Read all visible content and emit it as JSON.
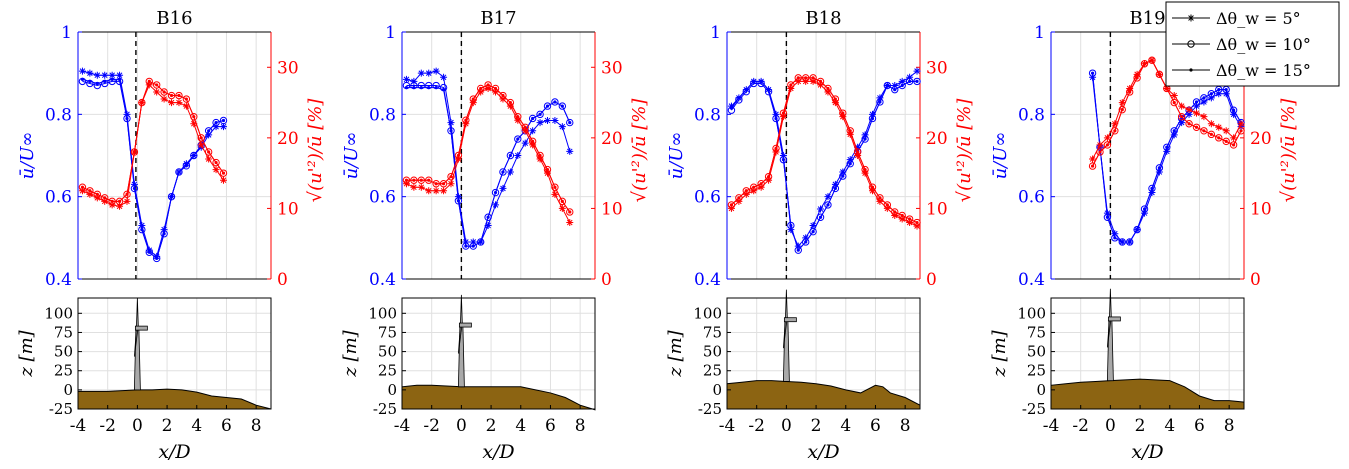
{
  "figure": {
    "legend": [
      {
        "label": "Δθ_w = 5°",
        "marker": "star"
      },
      {
        "label": "Δθ_w = 10°",
        "marker": "circle"
      },
      {
        "label": "Δθ_w = 15°",
        "marker": "dot"
      }
    ],
    "colors": {
      "velocity": "#0000ff",
      "turbulence": "#ff0000",
      "terrain": "#8c6412",
      "turbine": "#a9a9a9",
      "grid": "#e0e0e0"
    },
    "left_axis_label": "ū/U∞",
    "right_axis_label": "√(u'²)/ū [%]",
    "x_axis_label": "x/D",
    "z_axis_label": "z [m]"
  },
  "chart_data": [
    {
      "type": "line",
      "title": "B16",
      "xlim": [
        -4,
        9
      ],
      "ylim_left": [
        0.4,
        1
      ],
      "ylim_right": [
        0,
        35
      ],
      "x_ticks": [
        "-4",
        "-2",
        "0",
        "2",
        "4",
        "6",
        "8"
      ],
      "left_ticks": [
        "0.4",
        "0.6",
        "0.8",
        "1"
      ],
      "right_ticks": [
        "0",
        "10",
        "20",
        "30"
      ],
      "dashed_line_x": -0.1,
      "x": [
        -3.7,
        -3.2,
        -2.7,
        -2.2,
        -1.7,
        -1.2,
        -0.7,
        -0.2,
        0.3,
        0.8,
        1.3,
        1.8,
        2.3,
        2.8,
        3.3,
        3.8,
        4.3,
        4.8,
        5.3,
        5.8
      ],
      "velocity_series": [
        {
          "name": "Δθ_w = 5°",
          "values": [
            0.905,
            0.9,
            0.895,
            0.895,
            0.895,
            0.895,
            0.8,
            0.63,
            0.53,
            0.47,
            0.455,
            0.52,
            0.6,
            0.66,
            0.68,
            0.7,
            0.72,
            0.75,
            0.77,
            0.77
          ]
        },
        {
          "name": "Δθ_w = 10°",
          "values": [
            0.88,
            0.875,
            0.87,
            0.875,
            0.88,
            0.88,
            0.79,
            0.62,
            0.52,
            0.465,
            0.45,
            0.51,
            0.6,
            0.66,
            0.675,
            0.7,
            0.725,
            0.76,
            0.78,
            0.785
          ]
        },
        {
          "name": "Δθ_w = 15°",
          "values": [
            0.885,
            0.88,
            0.875,
            0.88,
            0.885,
            0.885,
            0.79,
            0.62,
            0.52,
            0.465,
            0.45,
            0.51,
            0.6,
            0.66,
            0.675,
            0.7,
            0.725,
            0.76,
            0.78,
            0.785
          ]
        }
      ],
      "turbulence_series": [
        {
          "name": "Δθ_w = 5°",
          "values": [
            12.5,
            12,
            11.5,
            11,
            10.5,
            10.3,
            11,
            18,
            25,
            27.5,
            26.5,
            25.5,
            25,
            25,
            24.5,
            22,
            19,
            17,
            15.5,
            14
          ]
        },
        {
          "name": "Δθ_w = 10°",
          "values": [
            13,
            12.5,
            12,
            11.5,
            11,
            11,
            12,
            18,
            25,
            28,
            27.5,
            26.5,
            26,
            26,
            25.5,
            23,
            20,
            18,
            16.5,
            15
          ]
        },
        {
          "name": "Δθ_w = 15°",
          "values": [
            13,
            12.5,
            12,
            11.5,
            11,
            11,
            12,
            18,
            25,
            28,
            27.5,
            26.5,
            26,
            26,
            25.5,
            23,
            20,
            18,
            16.5,
            15
          ]
        }
      ],
      "terrain": {
        "x": [
          -4,
          -3,
          -2,
          -1,
          0,
          1,
          2,
          3,
          4,
          5,
          6,
          7,
          8,
          9
        ],
        "z": [
          -2,
          -2,
          -2,
          -1,
          0,
          0,
          1,
          0,
          -3,
          -8,
          -10,
          -12,
          -20,
          -25
        ]
      },
      "turbine_hub_m": 80,
      "turbine_tip_m": 120
    },
    {
      "type": "line",
      "title": "B17",
      "xlim": [
        -4,
        9
      ],
      "ylim_left": [
        0.4,
        1
      ],
      "ylim_right": [
        0,
        35
      ],
      "x_ticks": [
        "-4",
        "-2",
        "0",
        "2",
        "4",
        "6",
        "8"
      ],
      "left_ticks": [
        "0.4",
        "0.6",
        "0.8",
        "1"
      ],
      "right_ticks": [
        "0",
        "10",
        "20",
        "30"
      ],
      "dashed_line_x": 0,
      "x": [
        -3.7,
        -3.2,
        -2.7,
        -2.2,
        -1.7,
        -1.2,
        -0.7,
        -0.2,
        0.3,
        0.8,
        1.3,
        1.8,
        2.3,
        2.8,
        3.3,
        3.8,
        4.3,
        4.8,
        5.3,
        5.8,
        6.3,
        6.8,
        7.3
      ],
      "velocity_series": [
        {
          "name": "Δθ_w = 5°",
          "values": [
            0.885,
            0.88,
            0.9,
            0.9,
            0.905,
            0.89,
            0.78,
            0.6,
            0.49,
            0.49,
            0.49,
            0.53,
            0.58,
            0.62,
            0.66,
            0.7,
            0.73,
            0.76,
            0.78,
            0.785,
            0.785,
            0.77,
            0.71
          ]
        },
        {
          "name": "Δθ_w = 10°",
          "values": [
            0.87,
            0.87,
            0.87,
            0.87,
            0.87,
            0.865,
            0.76,
            0.59,
            0.48,
            0.48,
            0.49,
            0.55,
            0.61,
            0.66,
            0.7,
            0.74,
            0.76,
            0.79,
            0.8,
            0.82,
            0.83,
            0.82,
            0.78
          ]
        },
        {
          "name": "Δθ_w = 15°",
          "values": [
            0.865,
            0.865,
            0.865,
            0.865,
            0.865,
            0.86,
            0.76,
            0.59,
            0.48,
            0.48,
            0.49,
            0.55,
            0.61,
            0.66,
            0.7,
            0.74,
            0.76,
            0.79,
            0.8,
            0.82,
            0.83,
            0.82,
            0.78
          ]
        }
      ],
      "turbulence_series": [
        {
          "name": "Δθ_w = 5°",
          "values": [
            13.5,
            13,
            13,
            12.5,
            12.5,
            12.5,
            13.5,
            17,
            22,
            25,
            26.5,
            27,
            26.5,
            25.5,
            24.5,
            22.5,
            21,
            19,
            17,
            15,
            12,
            10,
            8
          ]
        },
        {
          "name": "Δθ_w = 10°",
          "values": [
            14,
            14,
            14,
            14,
            13.5,
            13.5,
            14.5,
            17.5,
            22.5,
            25.5,
            27,
            27.5,
            27,
            26,
            25,
            23,
            21.5,
            19.5,
            17.5,
            15.5,
            13,
            11,
            9.5
          ]
        },
        {
          "name": "Δθ_w = 15°",
          "values": [
            14,
            14,
            14,
            14,
            13.5,
            13.5,
            14.5,
            17.5,
            22.5,
            25.5,
            27,
            27.5,
            27,
            26,
            25,
            23,
            21.5,
            19.5,
            17.5,
            15.5,
            13,
            11,
            9.5
          ]
        }
      ],
      "terrain": {
        "x": [
          -4,
          -3,
          -2,
          -1,
          0,
          1,
          2,
          3,
          4,
          5,
          6,
          7,
          8,
          9
        ],
        "z": [
          4,
          6,
          6,
          5,
          4,
          4,
          4,
          4,
          4,
          0,
          -4,
          -10,
          -20,
          -26
        ]
      },
      "turbine_hub_m": 80,
      "turbine_tip_m": 120
    },
    {
      "type": "line",
      "title": "B18",
      "xlim": [
        -4,
        9
      ],
      "ylim_left": [
        0.4,
        1
      ],
      "ylim_right": [
        0,
        35
      ],
      "x_ticks": [
        "-4",
        "-2",
        "0",
        "2",
        "4",
        "6",
        "8"
      ],
      "left_ticks": [
        "0.4",
        "0.6",
        "0.8",
        "1"
      ],
      "right_ticks": [
        "0",
        "10",
        "20",
        "30"
      ],
      "dashed_line_x": 0,
      "x": [
        -3.7,
        -3.2,
        -2.7,
        -2.2,
        -1.7,
        -1.2,
        -0.7,
        -0.2,
        0.3,
        0.8,
        1.3,
        1.8,
        2.3,
        2.8,
        3.3,
        3.8,
        4.3,
        4.8,
        5.3,
        5.8,
        6.3,
        6.8,
        7.3,
        7.8,
        8.3,
        8.8
      ],
      "velocity_series": [
        {
          "name": "Δθ_w = 5°",
          "values": [
            0.82,
            0.84,
            0.86,
            0.88,
            0.88,
            0.86,
            0.8,
            0.7,
            0.52,
            0.48,
            0.5,
            0.53,
            0.57,
            0.6,
            0.63,
            0.66,
            0.69,
            0.72,
            0.75,
            0.8,
            0.84,
            0.87,
            0.87,
            0.88,
            0.89,
            0.905
          ]
        },
        {
          "name": "Δθ_w = 10°",
          "values": [
            0.81,
            0.835,
            0.855,
            0.875,
            0.875,
            0.855,
            0.79,
            0.69,
            0.53,
            0.47,
            0.49,
            0.515,
            0.55,
            0.58,
            0.62,
            0.65,
            0.68,
            0.71,
            0.74,
            0.79,
            0.83,
            0.87,
            0.86,
            0.87,
            0.88,
            0.88
          ]
        },
        {
          "name": "Δθ_w = 15°",
          "values": [
            0.815,
            0.84,
            0.86,
            0.88,
            0.88,
            0.86,
            0.79,
            0.69,
            0.53,
            0.47,
            0.49,
            0.515,
            0.55,
            0.58,
            0.62,
            0.65,
            0.68,
            0.71,
            0.74,
            0.79,
            0.83,
            0.87,
            0.86,
            0.87,
            0.88,
            0.88
          ]
        }
      ],
      "turbulence_series": [
        {
          "name": "Δθ_w = 5°",
          "values": [
            10,
            11,
            12,
            12.5,
            13,
            14,
            18,
            23,
            27,
            28,
            28,
            28,
            27.5,
            26.5,
            25,
            23,
            20.5,
            17.5,
            15,
            12.5,
            11,
            10,
            9,
            8.5,
            8,
            7.5
          ]
        },
        {
          "name": "Δθ_w = 10°",
          "values": [
            10.5,
            11.5,
            12.5,
            13,
            13.5,
            14.5,
            18.5,
            23.5,
            27.5,
            28.5,
            28.5,
            28.5,
            28,
            27,
            25.5,
            23.5,
            21,
            18,
            15.5,
            13,
            11.5,
            10.5,
            9.5,
            9,
            8.5,
            8
          ]
        },
        {
          "name": "Δθ_w = 15°",
          "values": [
            10.5,
            11.5,
            12.5,
            13,
            13.5,
            14.5,
            18.5,
            23.5,
            27.5,
            28.5,
            28.5,
            28.5,
            28,
            27,
            25.5,
            23.5,
            21,
            18,
            15.5,
            13,
            11.5,
            10.5,
            9.5,
            9,
            8.5,
            8
          ]
        }
      ],
      "terrain": {
        "x": [
          -4,
          -3,
          -2,
          -1,
          0,
          1,
          2,
          3,
          4,
          5,
          6,
          6.5,
          7,
          8,
          9
        ],
        "z": [
          8,
          10,
          12,
          12,
          11,
          10,
          8,
          5,
          0,
          -4,
          6,
          4,
          -4,
          -10,
          -20
        ]
      },
      "turbine_hub_m": 80,
      "turbine_tip_m": 120
    },
    {
      "type": "line",
      "title": "B19",
      "xlim": [
        -4,
        9
      ],
      "ylim_left": [
        0.4,
        1
      ],
      "ylim_right": [
        0,
        35
      ],
      "x_ticks": [
        "-4",
        "-2",
        "0",
        "2",
        "4",
        "6",
        "8"
      ],
      "left_ticks": [
        "0.4",
        "0.6",
        "0.8",
        "1"
      ],
      "right_ticks": [
        "0",
        "10",
        "20",
        "30"
      ],
      "dashed_line_x": 0,
      "x": [
        -1.2,
        -0.7,
        -0.2,
        0.3,
        0.8,
        1.3,
        1.8,
        2.3,
        2.8,
        3.3,
        3.8,
        4.3,
        4.8,
        5.3,
        5.8,
        6.3,
        6.8,
        7.3,
        7.8,
        8.3,
        8.8
      ],
      "velocity_series": [
        {
          "name": "Δθ_w = 5°",
          "values": [
            0.89,
            0.72,
            0.56,
            0.51,
            0.49,
            0.49,
            0.52,
            0.56,
            0.61,
            0.66,
            0.71,
            0.75,
            0.78,
            0.8,
            0.82,
            0.83,
            0.84,
            0.85,
            0.85,
            0.8,
            0.77
          ]
        },
        {
          "name": "Δθ_w = 10°",
          "values": [
            0.9,
            0.72,
            0.55,
            0.5,
            0.49,
            0.49,
            0.52,
            0.57,
            0.62,
            0.67,
            0.72,
            0.76,
            0.79,
            0.81,
            0.83,
            0.84,
            0.85,
            0.86,
            0.86,
            0.81,
            0.78
          ]
        },
        {
          "name": "Δθ_w = 15°",
          "values": [
            0.9,
            0.72,
            0.55,
            0.5,
            0.49,
            0.49,
            0.52,
            0.57,
            0.62,
            0.67,
            0.72,
            0.76,
            0.79,
            0.81,
            0.83,
            0.84,
            0.85,
            0.86,
            0.86,
            0.81,
            0.78
          ]
        }
      ],
      "turbulence_series": [
        {
          "name": "Δθ_w = 5°",
          "values": [
            17,
            19,
            20,
            22,
            25,
            27,
            29,
            30.5,
            31,
            29,
            27,
            26,
            24.5,
            24,
            23.5,
            23,
            22,
            21.5,
            21,
            20,
            22
          ]
        },
        {
          "name": "Δθ_w = 10°",
          "values": [
            16,
            18,
            19,
            21,
            24,
            26.5,
            28.5,
            30.5,
            31,
            29,
            27,
            25,
            23,
            22,
            21.5,
            21,
            20.5,
            20,
            19.5,
            19,
            21
          ]
        },
        {
          "name": "Δθ_w = 15°",
          "values": [
            16,
            18,
            19,
            21,
            24,
            26.5,
            28.5,
            30.5,
            31,
            29,
            27,
            25,
            23,
            22,
            21.5,
            21,
            20.5,
            20,
            19.5,
            19,
            21
          ]
        }
      ],
      "terrain": {
        "x": [
          -4,
          -3,
          -2,
          -1,
          0,
          1,
          2,
          3,
          4,
          5,
          6,
          7,
          8,
          9
        ],
        "z": [
          6,
          8,
          10,
          11,
          12,
          13,
          14,
          13,
          12,
          4,
          -8,
          -14,
          -14,
          -16
        ]
      },
      "turbine_hub_m": 80,
      "turbine_tip_m": 120
    }
  ],
  "bottom_axes": {
    "ylim": [
      -25,
      120
    ],
    "y_ticks": [
      "-25",
      "0",
      "25",
      "50",
      "75",
      "100"
    ]
  }
}
